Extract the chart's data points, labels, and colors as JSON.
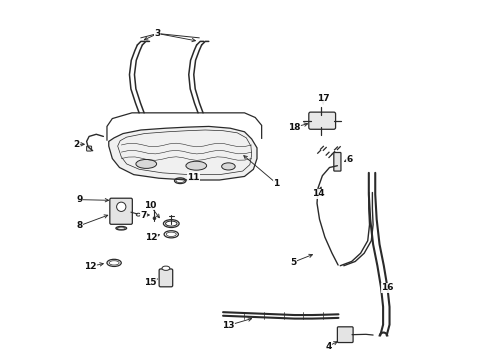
{
  "bg_color": "#ffffff",
  "line_color": "#2a2a2a",
  "text_color": "#111111",
  "fig_width": 4.89,
  "fig_height": 3.6,
  "dpi": 100
}
